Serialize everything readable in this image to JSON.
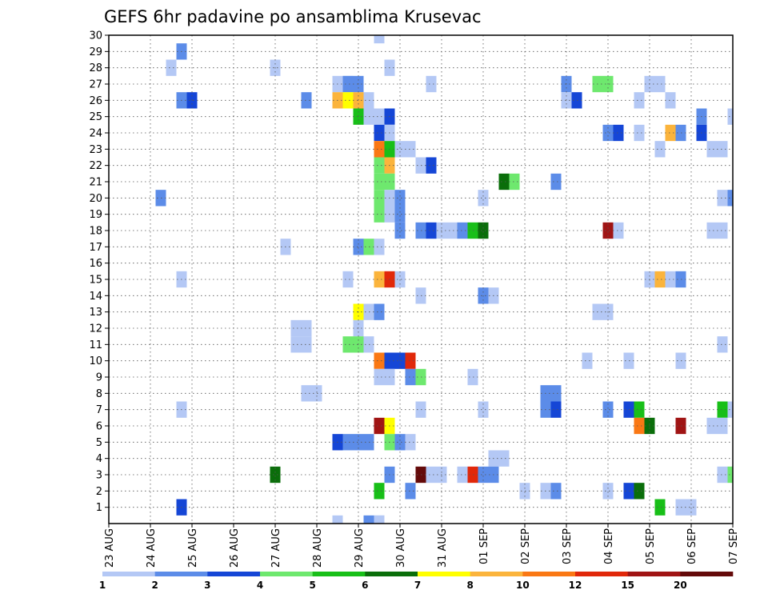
{
  "chart_data": {
    "type": "heatmap",
    "title": "GEFS 6hr padavine po ansamblima Krusevac",
    "x_ticks": [
      "23 AUG",
      "24 AUG",
      "25 AUG",
      "26 AUG",
      "27 AUG",
      "28 AUG",
      "29 AUG",
      "30 AUG",
      "31 AUG",
      "01 SEP",
      "02 SEP",
      "03 SEP",
      "04 SEP",
      "05 SEP",
      "06 SEP",
      "07 SEP"
    ],
    "y_ticks": [
      "1",
      "2",
      "3",
      "4",
      "5",
      "6",
      "7",
      "8",
      "9",
      "10",
      "11",
      "12",
      "13",
      "14",
      "15",
      "16",
      "17",
      "18",
      "19",
      "20",
      "21",
      "22",
      "23",
      "24",
      "25",
      "26",
      "27",
      "28",
      "29",
      "30"
    ],
    "ylim": [
      0,
      30
    ],
    "time_steps": 60,
    "grid": true,
    "colorbar": {
      "labels": [
        "1",
        "2",
        "3",
        "4",
        "5",
        "6",
        "7",
        "8",
        "10",
        "12",
        "15",
        "20"
      ],
      "colors": [
        "#b4c8f5",
        "#5c8ce8",
        "#1546d6",
        "#6ee86e",
        "#18bf18",
        "#0a6e0a",
        "#ffff00",
        "#fbb43c",
        "#fa7814",
        "#e1280a",
        "#a01414",
        "#640a0a"
      ]
    },
    "cells": [
      [
        26,
        30,
        1
      ],
      [
        26,
        0,
        1
      ],
      [
        7,
        29,
        2
      ],
      [
        23,
        27,
        1
      ],
      [
        24,
        27,
        2
      ],
      [
        6,
        28,
        1
      ],
      [
        16,
        28,
        1
      ],
      [
        27,
        28,
        1
      ],
      [
        22,
        27,
        1
      ],
      [
        23,
        27,
        2
      ],
      [
        31,
        27,
        1
      ],
      [
        44,
        27,
        2
      ],
      [
        47,
        27,
        4
      ],
      [
        48,
        27,
        4
      ],
      [
        52,
        27,
        1
      ],
      [
        53,
        27,
        1
      ],
      [
        7,
        26,
        2
      ],
      [
        8,
        26,
        3
      ],
      [
        19,
        26,
        2
      ],
      [
        22,
        26,
        8
      ],
      [
        23,
        26,
        7
      ],
      [
        24,
        26,
        8
      ],
      [
        25,
        26,
        1
      ],
      [
        44,
        26,
        1
      ],
      [
        45,
        26,
        3
      ],
      [
        51,
        26,
        1
      ],
      [
        54,
        26,
        1
      ],
      [
        24,
        25,
        5
      ],
      [
        25,
        25,
        1
      ],
      [
        26,
        25,
        1
      ],
      [
        27,
        25,
        3
      ],
      [
        57,
        25,
        2
      ],
      [
        60,
        25,
        1
      ],
      [
        26,
        24,
        3
      ],
      [
        27,
        24,
        1
      ],
      [
        48,
        24,
        2
      ],
      [
        49,
        24,
        3
      ],
      [
        51,
        24,
        1
      ],
      [
        54,
        24,
        8
      ],
      [
        55,
        24,
        2
      ],
      [
        57,
        24,
        3
      ],
      [
        26,
        23,
        9
      ],
      [
        27,
        23,
        5
      ],
      [
        28,
        23,
        1
      ],
      [
        29,
        23,
        1
      ],
      [
        53,
        23,
        1
      ],
      [
        58,
        23,
        1
      ],
      [
        59,
        23,
        1
      ],
      [
        26,
        22,
        4
      ],
      [
        27,
        22,
        8
      ],
      [
        30,
        22,
        1
      ],
      [
        31,
        22,
        3
      ],
      [
        26,
        21,
        4
      ],
      [
        27,
        21,
        4
      ],
      [
        38,
        21,
        6
      ],
      [
        39,
        21,
        4
      ],
      [
        43,
        21,
        2
      ],
      [
        26,
        20,
        4
      ],
      [
        27,
        20,
        1
      ],
      [
        28,
        20,
        2
      ],
      [
        36,
        20,
        1
      ],
      [
        60,
        20,
        2
      ],
      [
        5,
        20,
        2
      ],
      [
        59,
        20,
        1
      ],
      [
        26,
        19,
        4
      ],
      [
        27,
        19,
        1
      ],
      [
        28,
        19,
        2
      ],
      [
        28,
        18,
        2
      ],
      [
        30,
        18,
        2
      ],
      [
        31,
        18,
        3
      ],
      [
        32,
        18,
        1
      ],
      [
        33,
        18,
        1
      ],
      [
        34,
        18,
        2
      ],
      [
        35,
        18,
        5
      ],
      [
        36,
        18,
        6
      ],
      [
        48,
        18,
        11
      ],
      [
        49,
        18,
        1
      ],
      [
        58,
        18,
        1
      ],
      [
        59,
        18,
        1
      ],
      [
        17,
        17,
        1
      ],
      [
        24,
        17,
        2
      ],
      [
        25,
        17,
        4
      ],
      [
        26,
        17,
        1
      ],
      [
        7,
        15,
        1
      ],
      [
        23,
        15,
        1
      ],
      [
        26,
        15,
        8
      ],
      [
        27,
        15,
        10
      ],
      [
        28,
        15,
        1
      ],
      [
        52,
        15,
        1
      ],
      [
        53,
        15,
        8
      ],
      [
        54,
        15,
        1
      ],
      [
        55,
        15,
        2
      ],
      [
        30,
        14,
        1
      ],
      [
        36,
        14,
        2
      ],
      [
        37,
        14,
        1
      ],
      [
        24,
        13,
        7
      ],
      [
        25,
        13,
        1
      ],
      [
        26,
        13,
        2
      ],
      [
        47,
        13,
        1
      ],
      [
        48,
        13,
        1
      ],
      [
        18,
        12,
        1
      ],
      [
        19,
        12,
        1
      ],
      [
        24,
        12,
        1
      ],
      [
        18,
        11,
        1
      ],
      [
        19,
        11,
        1
      ],
      [
        23,
        11,
        4
      ],
      [
        24,
        11,
        4
      ],
      [
        25,
        11,
        1
      ],
      [
        59,
        11,
        1
      ],
      [
        26,
        10,
        9
      ],
      [
        27,
        10,
        3
      ],
      [
        28,
        10,
        3
      ],
      [
        29,
        10,
        10
      ],
      [
        46,
        10,
        1
      ],
      [
        50,
        10,
        1
      ],
      [
        55,
        10,
        1
      ],
      [
        26,
        9,
        1
      ],
      [
        27,
        9,
        1
      ],
      [
        29,
        9,
        2
      ],
      [
        30,
        9,
        4
      ],
      [
        35,
        9,
        1
      ],
      [
        19,
        8,
        1
      ],
      [
        20,
        8,
        1
      ],
      [
        42,
        8,
        2
      ],
      [
        43,
        8,
        2
      ],
      [
        7,
        7,
        1
      ],
      [
        30,
        7,
        1
      ],
      [
        36,
        7,
        1
      ],
      [
        42,
        7,
        2
      ],
      [
        43,
        7,
        3
      ],
      [
        48,
        7,
        2
      ],
      [
        50,
        7,
        3
      ],
      [
        51,
        7,
        5
      ],
      [
        59,
        7,
        5
      ],
      [
        60,
        7,
        1
      ],
      [
        26,
        6,
        11
      ],
      [
        27,
        6,
        7
      ],
      [
        51,
        6,
        9
      ],
      [
        52,
        6,
        6
      ],
      [
        55,
        6,
        11
      ],
      [
        58,
        6,
        1
      ],
      [
        59,
        6,
        1
      ],
      [
        22,
        5,
        3
      ],
      [
        23,
        5,
        2
      ],
      [
        24,
        5,
        2
      ],
      [
        25,
        5,
        2
      ],
      [
        27,
        5,
        4
      ],
      [
        28,
        5,
        2
      ],
      [
        29,
        5,
        1
      ],
      [
        37,
        4,
        1
      ],
      [
        38,
        4,
        1
      ],
      [
        16,
        3,
        6
      ],
      [
        27,
        3,
        2
      ],
      [
        30,
        3,
        12
      ],
      [
        31,
        3,
        1
      ],
      [
        32,
        3,
        1
      ],
      [
        34,
        3,
        1
      ],
      [
        35,
        3,
        10
      ],
      [
        36,
        3,
        2
      ],
      [
        37,
        3,
        2
      ],
      [
        59,
        3,
        1
      ],
      [
        60,
        3,
        4
      ],
      [
        26,
        2,
        5
      ],
      [
        29,
        2,
        2
      ],
      [
        40,
        2,
        1
      ],
      [
        42,
        2,
        1
      ],
      [
        43,
        2,
        2
      ],
      [
        48,
        2,
        1
      ],
      [
        50,
        2,
        3
      ],
      [
        51,
        2,
        6
      ],
      [
        7,
        1,
        3
      ],
      [
        53,
        1,
        5
      ],
      [
        55,
        1,
        1
      ],
      [
        56,
        1,
        1
      ],
      [
        26,
        0,
        1
      ],
      [
        22,
        0,
        1
      ],
      [
        25,
        0,
        2
      ]
    ]
  }
}
